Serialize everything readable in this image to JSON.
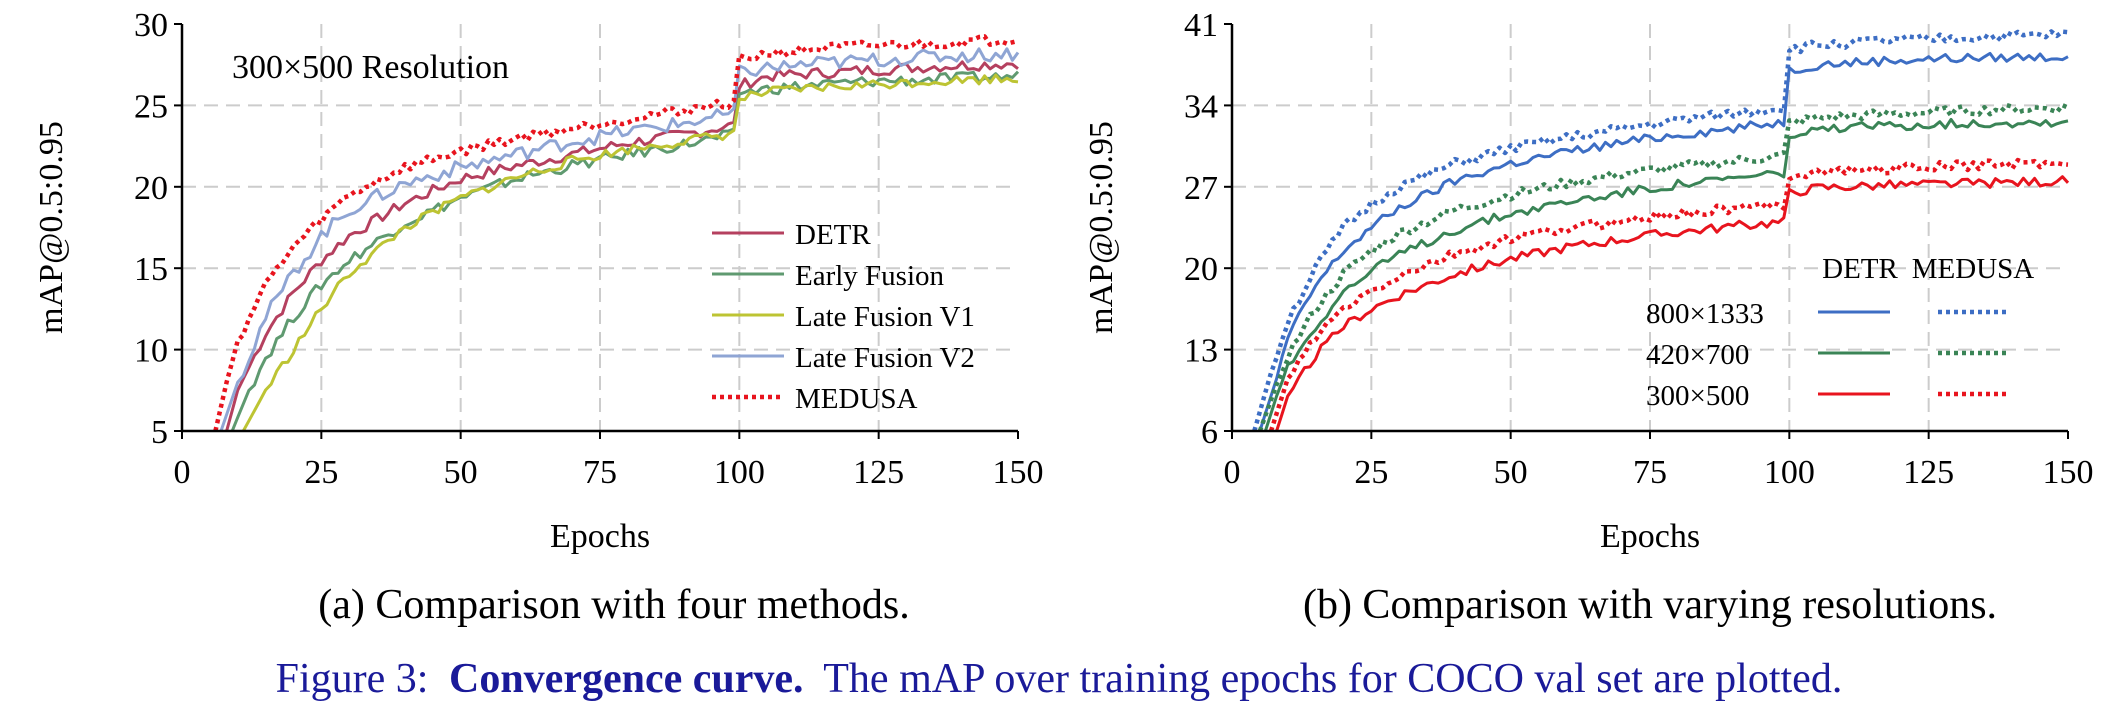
{
  "figure": {
    "number_label": "Figure 3:",
    "bold_label": "Convergence curve.",
    "text": "The mAP over training epochs for COCO val set are plotted.",
    "color": "#1a1a99"
  },
  "chart_data": [
    {
      "type": "line",
      "caption": "(a) Comparison with four methods.",
      "annotation": "300×500 Resolution",
      "xlabel": "Epochs",
      "ylabel": "mAP@0.5:0.95",
      "xlim": [
        0,
        150
      ],
      "ylim": [
        5,
        30
      ],
      "xticks": [
        0,
        25,
        50,
        75,
        100,
        125,
        150
      ],
      "yticks": [
        5,
        10,
        15,
        20,
        25,
        30
      ],
      "grid": true,
      "legend_position": "bottom-right",
      "series": [
        {
          "name": "DETR",
          "color": "#b5405f",
          "style": "solid",
          "noise": 0.35,
          "x": [
            8,
            10,
            15,
            20,
            25,
            30,
            40,
            50,
            60,
            70,
            80,
            90,
            99,
            100,
            105,
            115,
            125,
            135,
            150
          ],
          "y": [
            5,
            7.5,
            11,
            13.5,
            15.5,
            17,
            19,
            20.5,
            21.3,
            22,
            22.7,
            23.2,
            23.8,
            26.2,
            26.8,
            27,
            27.2,
            27.4,
            27.6
          ]
        },
        {
          "name": "Early Fusion",
          "color": "#5f9a70",
          "style": "solid",
          "noise": 0.35,
          "x": [
            9,
            12,
            15,
            20,
            25,
            30,
            40,
            50,
            60,
            70,
            80,
            90,
            99,
            100,
            105,
            115,
            125,
            135,
            150
          ],
          "y": [
            5,
            7.5,
            9.5,
            12,
            14,
            15.5,
            17.8,
            19.3,
            20.5,
            21.3,
            22,
            22.6,
            23.2,
            25.8,
            26,
            26.3,
            26.5,
            26.6,
            26.8
          ]
        },
        {
          "name": "Late Fusion V1",
          "color": "#bdc433",
          "style": "solid",
          "noise": 0.3,
          "x": [
            11,
            15,
            20,
            25,
            30,
            40,
            50,
            60,
            70,
            80,
            90,
            99,
            100,
            105,
            115,
            125,
            135,
            150
          ],
          "y": [
            5,
            7.5,
            10,
            12.5,
            14.7,
            17.5,
            19.3,
            20.6,
            21.6,
            22.3,
            22.8,
            23.3,
            25.4,
            25.8,
            26.1,
            26.3,
            26.5,
            26.7
          ]
        },
        {
          "name": "Late Fusion V2",
          "color": "#8fa5d4",
          "style": "solid",
          "noise": 0.45,
          "x": [
            7,
            10,
            15,
            20,
            25,
            30,
            40,
            50,
            60,
            70,
            80,
            90,
            99,
            100,
            105,
            115,
            125,
            135,
            150
          ],
          "y": [
            5,
            8,
            12,
            14.7,
            17,
            18.6,
            20.2,
            21.2,
            22,
            22.8,
            23.4,
            23.9,
            24.5,
            27,
            27.3,
            27.6,
            27.8,
            28,
            28.2
          ]
        },
        {
          "name": "MEDUSA",
          "color": "#e8141e",
          "style": "dotted",
          "noise": 0.3,
          "x": [
            6,
            8,
            10,
            15,
            20,
            25,
            30,
            40,
            50,
            60,
            70,
            80,
            90,
            99,
            100,
            105,
            115,
            125,
            135,
            150
          ],
          "y": [
            5,
            8,
            10.5,
            14,
            16.3,
            18,
            19.5,
            21.2,
            22.2,
            23,
            23.6,
            24.2,
            24.7,
            25.2,
            27.8,
            28.2,
            28.5,
            28.7,
            28.8,
            29.1
          ]
        }
      ]
    },
    {
      "type": "line",
      "caption": "(b) Comparison with varying resolutions.",
      "xlabel": "Epochs",
      "ylabel": "mAP@0.5:0.95",
      "xlim": [
        0,
        150
      ],
      "ylim": [
        6,
        41
      ],
      "xticks": [
        0,
        25,
        50,
        75,
        100,
        125,
        150
      ],
      "yticks": [
        6,
        13,
        20,
        27,
        34,
        41
      ],
      "grid": true,
      "legend_position": "bottom-right",
      "legend_columns": [
        "DETR",
        "MEDUSA"
      ],
      "legend_rows": [
        {
          "resolution": "800×1333",
          "color": "#3d6ec4"
        },
        {
          "resolution": "420×700",
          "color": "#3a8456"
        },
        {
          "resolution": "300×500",
          "color": "#e8141e"
        }
      ],
      "series": [
        {
          "name": "DETR 800×1333",
          "color": "#3d6ec4",
          "style": "solid",
          "noise": 0.4,
          "x": [
            5,
            8,
            10,
            15,
            20,
            25,
            30,
            40,
            50,
            60,
            70,
            80,
            90,
            99,
            100,
            105,
            115,
            125,
            135,
            150
          ],
          "y": [
            6,
            10.5,
            14,
            18.5,
            21.5,
            23.5,
            25.2,
            27.5,
            29,
            30,
            30.8,
            31.5,
            32,
            32.6,
            37,
            37.5,
            37.8,
            38,
            38.1,
            38.2
          ]
        },
        {
          "name": "MEDUSA 800×1333",
          "color": "#3d6ec4",
          "style": "dotted",
          "noise": 0.4,
          "x": [
            4,
            7,
            10,
            15,
            20,
            25,
            30,
            40,
            50,
            60,
            70,
            80,
            90,
            99,
            100,
            105,
            115,
            125,
            135,
            150
          ],
          "y": [
            6,
            11,
            15.5,
            20,
            23.5,
            25.5,
            27,
            29,
            30.3,
            31.2,
            32,
            32.7,
            33.3,
            33.8,
            38.8,
            39.2,
            39.5,
            39.7,
            39.9,
            40.1
          ]
        },
        {
          "name": "DETR 420×700",
          "color": "#3a8456",
          "style": "solid",
          "noise": 0.4,
          "x": [
            6,
            8,
            10,
            15,
            20,
            25,
            30,
            40,
            50,
            60,
            70,
            80,
            90,
            99,
            100,
            105,
            115,
            125,
            135,
            150
          ],
          "y": [
            6,
            9,
            11.5,
            15,
            18,
            19.7,
            21.2,
            23.3,
            24.7,
            25.7,
            26.5,
            27.2,
            27.7,
            28.2,
            31.2,
            31.8,
            32.2,
            32.4,
            32.5,
            32.6
          ]
        },
        {
          "name": "MEDUSA 420×700",
          "color": "#3a8456",
          "style": "dotted",
          "noise": 0.4,
          "x": [
            5,
            8,
            10,
            15,
            20,
            25,
            30,
            40,
            50,
            60,
            70,
            80,
            90,
            99,
            100,
            105,
            115,
            125,
            135,
            150
          ],
          "y": [
            6,
            10,
            12.5,
            16.5,
            19.5,
            21.5,
            23,
            25,
            26.3,
            27.3,
            28.1,
            28.7,
            29.2,
            29.7,
            32.5,
            32.9,
            33.2,
            33.4,
            33.6,
            33.8
          ]
        },
        {
          "name": "DETR 300×500",
          "color": "#e8141e",
          "style": "solid",
          "noise": 0.4,
          "x": [
            8,
            10,
            15,
            20,
            25,
            30,
            40,
            50,
            60,
            70,
            80,
            90,
            99,
            100,
            105,
            115,
            125,
            135,
            150
          ],
          "y": [
            6,
            9,
            12.5,
            15,
            16.5,
            17.7,
            19.5,
            20.8,
            21.8,
            22.5,
            23.1,
            23.6,
            24,
            26.5,
            26.9,
            27.1,
            27.2,
            27.3,
            27.5
          ]
        },
        {
          "name": "MEDUSA 300×500",
          "color": "#e8141e",
          "style": "dotted",
          "noise": 0.4,
          "x": [
            7,
            10,
            15,
            20,
            25,
            30,
            40,
            50,
            60,
            70,
            80,
            90,
            99,
            100,
            105,
            115,
            125,
            135,
            150
          ],
          "y": [
            6,
            10.5,
            14,
            16.5,
            18,
            19.3,
            21.2,
            22.5,
            23.4,
            24.1,
            24.7,
            25.1,
            25.5,
            28,
            28.3,
            28.5,
            28.7,
            28.9,
            29.1
          ]
        }
      ]
    }
  ]
}
